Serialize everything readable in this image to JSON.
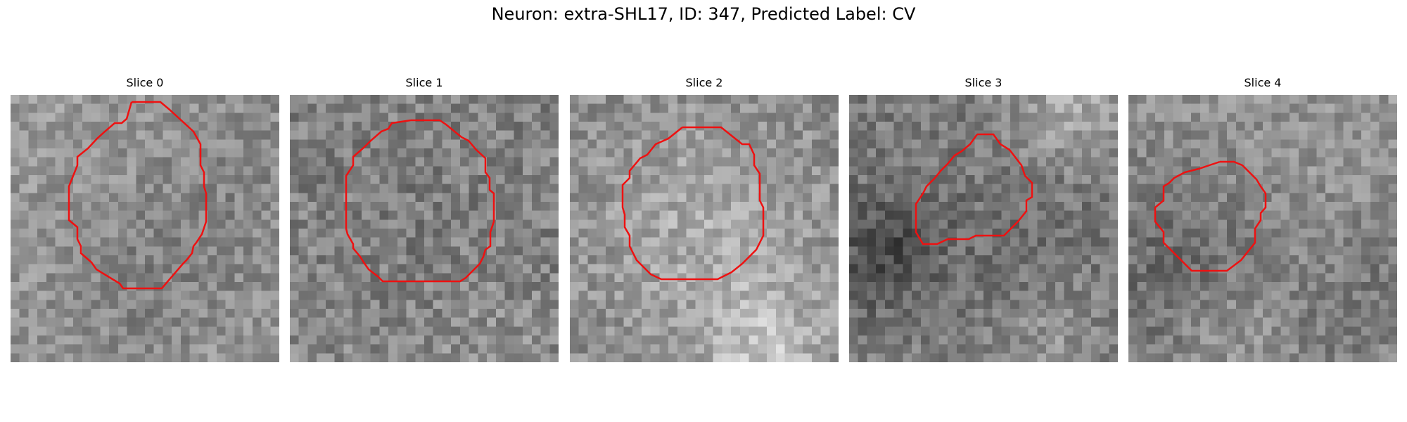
{
  "figure": {
    "title": "Neuron: extra-SHL17, ID: 347, Predicted Label: CV",
    "contour_color": "#ee1111"
  },
  "panels": [
    {
      "title": "Slice 0",
      "tone": {
        "mean": 150,
        "spread": 60
      }
    },
    {
      "title": "Slice 1",
      "tone": {
        "mean": 130,
        "spread": 70
      }
    },
    {
      "title": "Slice 2",
      "tone": {
        "mean": 140,
        "spread": 65
      }
    },
    {
      "title": "Slice 3",
      "tone": {
        "mean": 125,
        "spread": 65
      }
    },
    {
      "title": "Slice 4",
      "tone": {
        "mean": 150,
        "spread": 60
      }
    }
  ]
}
